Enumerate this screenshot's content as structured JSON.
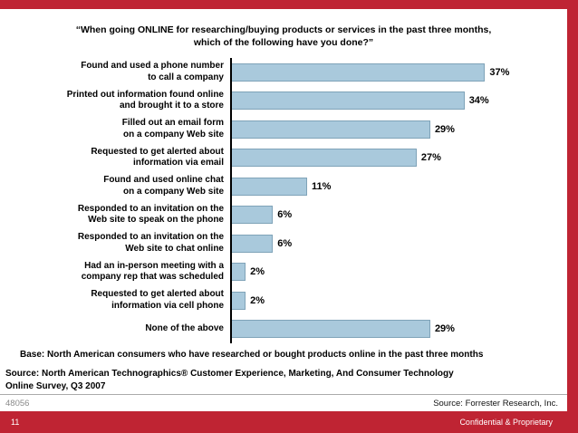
{
  "page": {
    "base_note": "Base: North American consumers who have researched or bought products online in the past three months",
    "survey_source_line1": "Source: North American Technographics® Customer Experience, Marketing, And Consumer Technology",
    "survey_source_line2": "Online Survey, Q3 2007",
    "doc_number": "48056",
    "source_right": "Source: Forrester Research, Inc.",
    "page_number": "11",
    "confidential": "Confidential & Proprietary",
    "frame_color": "#bf2433",
    "bar_color": "#a9c9dc"
  },
  "chart_data": {
    "type": "bar",
    "orientation": "horizontal",
    "title_line1": "“When going ONLINE for researching/buying products or services in the past three months,",
    "title_line2": "which of the following have you done?”",
    "unit": "%",
    "xlim": [
      0,
      40
    ],
    "grid": false,
    "legend": "none",
    "bar_color": "#a9c9dc",
    "categories": [
      "Found and used a phone number to call a company",
      "Printed out information found online and brought it to a store",
      "Filled out an email form on a company Web site",
      "Requested to get alerted about information via email",
      "Found and used online chat on a company Web site",
      "Responded to an invitation on the Web site to speak on the phone",
      "Responded to an invitation on the Web site to chat online",
      "Had an in-person meeting with a company rep that was scheduled",
      "Requested to get alerted about information via cell phone",
      "None of the above"
    ],
    "values": [
      37,
      34,
      29,
      27,
      11,
      6,
      6,
      2,
      2,
      29
    ],
    "labels_wrapped": [
      [
        "Found and used a phone number",
        "to call a company"
      ],
      [
        "Printed out information found online",
        "and brought it to a store"
      ],
      [
        "Filled out an email form",
        "on a company Web site"
      ],
      [
        "Requested to get alerted about",
        "information via email"
      ],
      [
        "Found and used online chat",
        "on a company Web site"
      ],
      [
        "Responded to an invitation on the",
        "Web site to speak on the phone"
      ],
      [
        "Responded to an invitation on the",
        "Web site to chat online"
      ],
      [
        "Had an in-person meeting with a",
        "company rep that was scheduled"
      ],
      [
        "Requested to get alerted about",
        "information via cell phone"
      ],
      [
        "None of the above"
      ]
    ]
  }
}
